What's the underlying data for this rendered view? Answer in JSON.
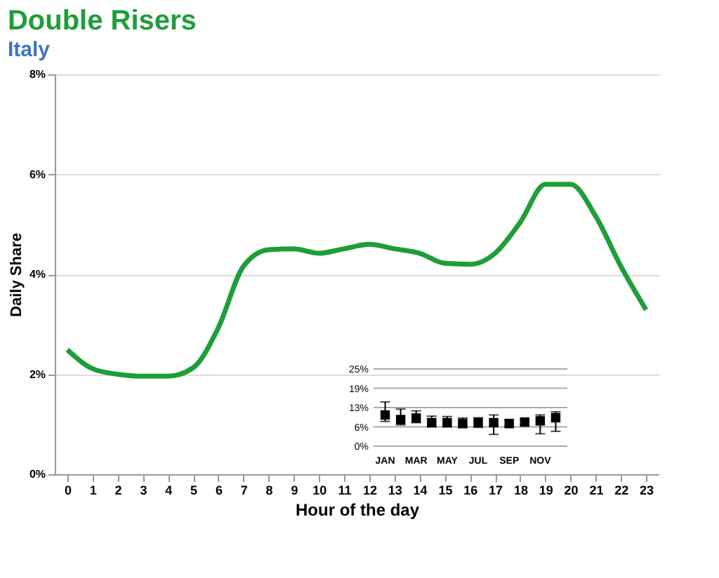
{
  "chart_data": [
    {
      "type": "line",
      "title": "Double Risers",
      "subtitle": "Italy",
      "xlabel": "Hour of the day",
      "ylabel": "Daily Share",
      "x": [
        0,
        1,
        2,
        3,
        4,
        5,
        6,
        7,
        8,
        9,
        10,
        11,
        12,
        13,
        14,
        15,
        16,
        17,
        18,
        19,
        20,
        21,
        22,
        23
      ],
      "xlim": [
        -0.5,
        23.5
      ],
      "xticks": [
        0,
        1,
        2,
        3,
        4,
        5,
        6,
        7,
        8,
        9,
        10,
        11,
        12,
        13,
        14,
        15,
        16,
        17,
        18,
        19,
        20,
        21,
        22,
        23
      ],
      "ylim": [
        0,
        8
      ],
      "yticks": [
        {
          "value": 0,
          "label": "0%"
        },
        {
          "value": 2,
          "label": "2%"
        },
        {
          "value": 4,
          "label": "4%"
        },
        {
          "value": 6,
          "label": "6%"
        },
        {
          "value": 8,
          "label": "8%"
        }
      ],
      "grid": "y",
      "line_style": "solid",
      "marker": "none",
      "series": [
        {
          "color": "#1e9e3a",
          "values": [
            2.49,
            2.11,
            2.0,
            1.96,
            1.96,
            2.13,
            2.93,
            4.16,
            4.49,
            4.51,
            4.42,
            4.51,
            4.6,
            4.51,
            4.42,
            4.22,
            4.2,
            4.42,
            5.04,
            5.8,
            5.8,
            5.16,
            4.16,
            3.29
          ]
        }
      ]
    },
    {
      "type": "scatter",
      "categories": [
        "JAN",
        null,
        "MAR",
        null,
        "MAY",
        null,
        "JUL",
        null,
        "SEP",
        null,
        "NOV",
        null
      ],
      "values": [
        10.1,
        8.6,
        9.1,
        7.6,
        7.6,
        7.3,
        7.6,
        7.6,
        7.3,
        7.8,
        8.2,
        9.2
      ],
      "errors": [
        [
          8.0,
          14.3
        ],
        [
          6.9,
          12.0
        ],
        [
          7.6,
          11.4
        ],
        [
          6.3,
          9.7
        ],
        [
          6.3,
          9.6
        ],
        [
          6.1,
          9.1
        ],
        [
          6.1,
          9.2
        ],
        [
          3.8,
          10.1
        ],
        [
          6.3,
          8.6
        ],
        [
          6.9,
          8.6
        ],
        [
          4.0,
          10.1
        ],
        [
          4.8,
          11.1
        ]
      ],
      "color": "#000000",
      "marker": "square",
      "grid": "y",
      "ylim": [
        0,
        25
      ],
      "yticks": [
        {
          "value": 0,
          "label": "0%"
        },
        {
          "value": 6.25,
          "label": "6%"
        },
        {
          "value": 12.5,
          "label": "13%"
        },
        {
          "value": 18.75,
          "label": "19%"
        },
        {
          "value": 25,
          "label": "25%"
        }
      ]
    }
  ]
}
